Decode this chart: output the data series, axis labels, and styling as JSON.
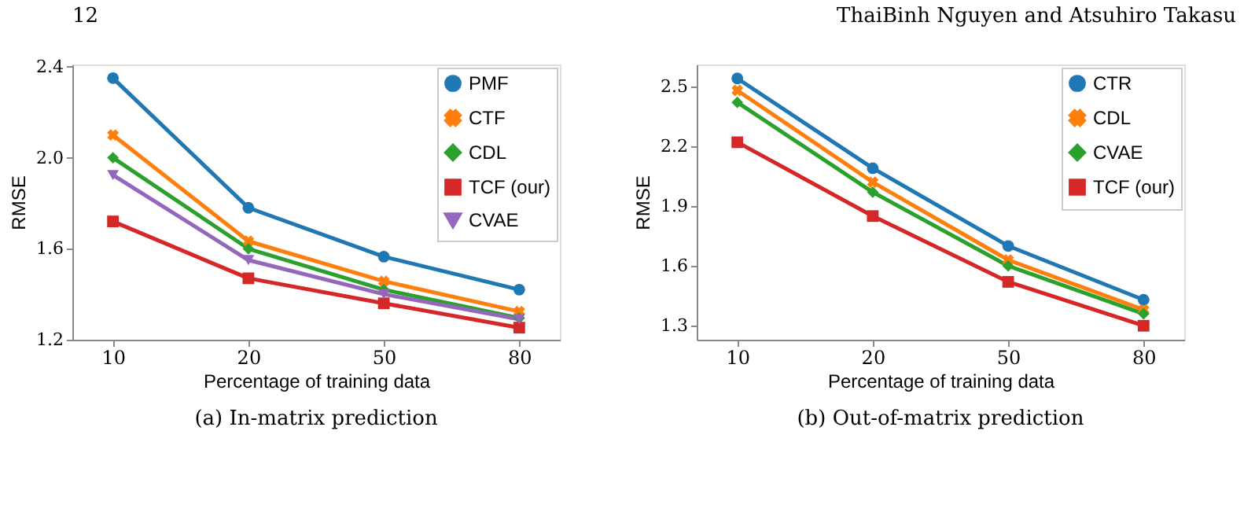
{
  "chart_data": [
    {
      "type": "line",
      "title": "(a) In-matrix prediction",
      "xlabel": "Percentage of training data",
      "ylabel": "RMSE",
      "annotations": [
        "12",
        "ThaiBinh Nguyen and Atsuhiro Takasu"
      ],
      "categories": [
        "10",
        "20",
        "50",
        "80"
      ],
      "series": [
        {
          "name": "PMF",
          "color": "#1f77b4",
          "marker": "circle",
          "values": [
            2.35,
            1.78,
            1.565,
            1.42
          ]
        },
        {
          "name": "CTF",
          "color": "#ff7f0e",
          "marker": "cross",
          "values": [
            2.1,
            1.633,
            1.457,
            1.324
          ]
        },
        {
          "name": "CDL",
          "color": "#2ca02c",
          "marker": "diamond",
          "values": [
            2.0,
            1.6,
            1.42,
            1.295
          ]
        },
        {
          "name": "TCF (our)",
          "color": "#d62728",
          "marker": "square",
          "values": [
            1.72,
            1.47,
            1.36,
            1.253
          ]
        },
        {
          "name": "CVAE",
          "color": "#9467bd",
          "marker": "triangle",
          "values": [
            1.924,
            1.55,
            1.4,
            1.29
          ]
        }
      ],
      "ylim": [
        1.2,
        2.41
      ],
      "yticks": [
        1.2,
        1.6,
        {
          "value": 2,
          "label": "2.0"
        },
        2.4
      ],
      "grid": false,
      "legend": "top right",
      "line_style": "solid"
    },
    {
      "type": "line",
      "title": "(b) Out-of-matrix prediction",
      "xlabel": "Percentage of training data",
      "ylabel": "RMSE",
      "categories": [
        "10",
        "20",
        "50",
        "80"
      ],
      "series": [
        {
          "name": "CTR",
          "color": "#1f77b4",
          "marker": "circle",
          "values": [
            2.54,
            2.09,
            1.7,
            1.43
          ]
        },
        {
          "name": "CDL",
          "color": "#ff7f0e",
          "marker": "cross",
          "values": [
            2.48,
            2.02,
            1.63,
            1.38
          ]
        },
        {
          "name": "CVAE",
          "color": "#2ca02c",
          "marker": "diamond",
          "values": [
            2.42,
            1.97,
            1.6,
            1.36
          ]
        },
        {
          "name": "TCF (our)",
          "color": "#d62728",
          "marker": "square",
          "values": [
            2.22,
            1.85,
            1.52,
            1.3
          ]
        }
      ],
      "ylim": [
        1.23,
        2.61
      ],
      "yticks": [
        1.3,
        1.6,
        1.9,
        2.2,
        2.5
      ],
      "grid": false,
      "legend": "top right",
      "line_style": "solid"
    }
  ]
}
